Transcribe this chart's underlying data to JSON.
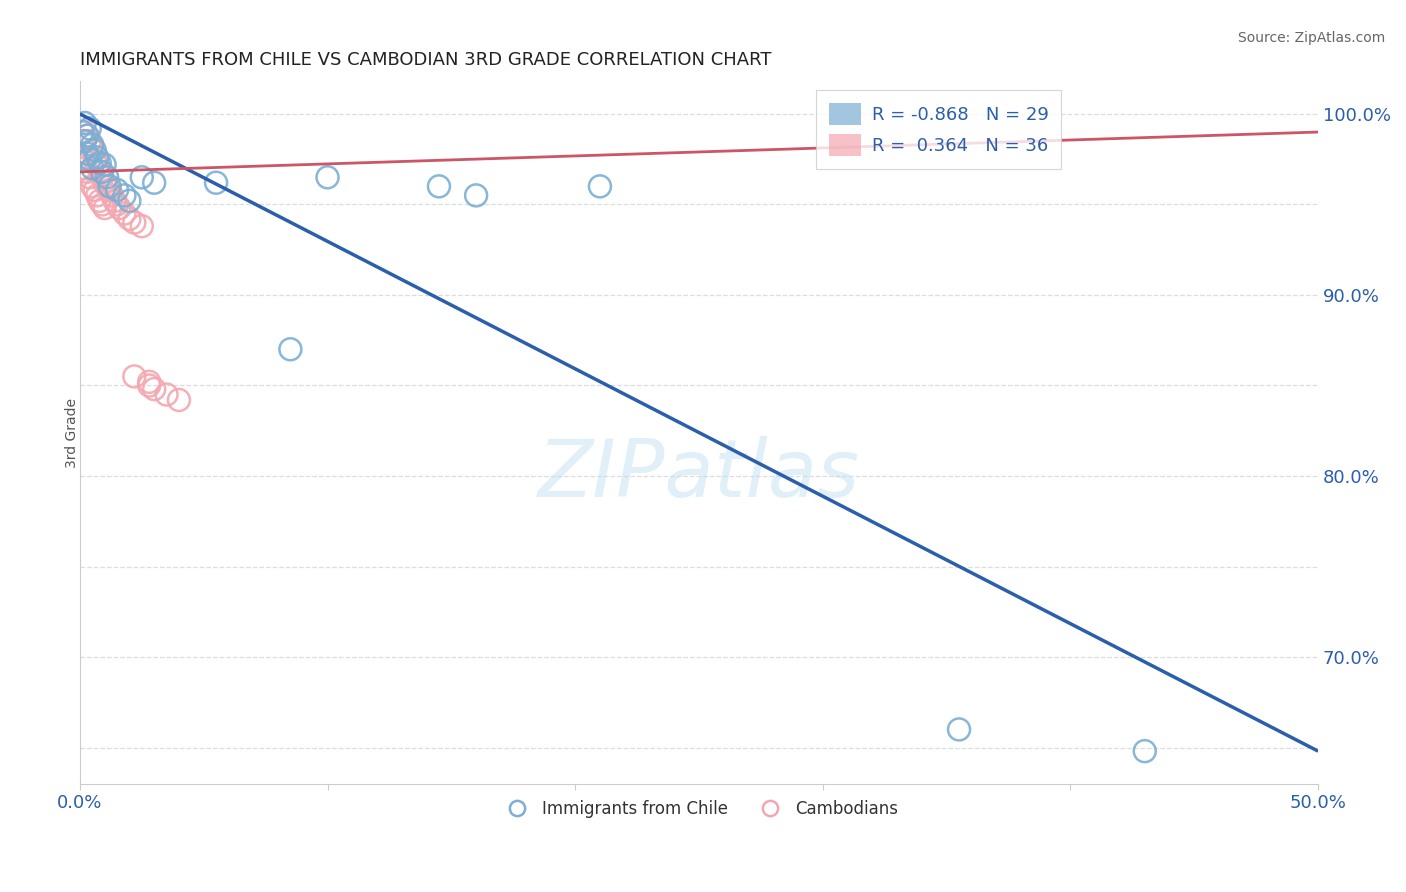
{
  "title": "IMMIGRANTS FROM CHILE VS CAMBODIAN 3RD GRADE CORRELATION CHART",
  "source_text": "Source: ZipAtlas.com",
  "ylabel": "3rd Grade",
  "xlim": [
    0.0,
    0.5
  ],
  "ylim": [
    0.63,
    1.018
  ],
  "blue_R": -0.868,
  "blue_N": 29,
  "pink_R": 0.364,
  "pink_N": 36,
  "blue_color": "#7BAFD4",
  "pink_color": "#F4A7B0",
  "blue_line_color": "#2B5EAB",
  "pink_line_color": "#CC5566",
  "legend_label_blue": "Immigrants from Chile",
  "legend_label_pink": "Cambodians",
  "watermark": "ZIPatlas",
  "blue_line_x": [
    0.0,
    0.5
  ],
  "blue_line_y": [
    1.0,
    0.648
  ],
  "pink_line_x": [
    0.0,
    0.5
  ],
  "pink_line_y": [
    0.968,
    0.99
  ],
  "blue_scatter_x": [
    0.001,
    0.002,
    0.002,
    0.003,
    0.003,
    0.004,
    0.004,
    0.005,
    0.005,
    0.006,
    0.007,
    0.008,
    0.009,
    0.01,
    0.011,
    0.012,
    0.015,
    0.018,
    0.02,
    0.025,
    0.03,
    0.055,
    0.085,
    0.1,
    0.145,
    0.16,
    0.21,
    0.355,
    0.43
  ],
  "blue_scatter_y": [
    0.99,
    0.985,
    0.995,
    0.988,
    0.978,
    0.992,
    0.975,
    0.983,
    0.97,
    0.98,
    0.976,
    0.973,
    0.968,
    0.972,
    0.965,
    0.96,
    0.958,
    0.955,
    0.952,
    0.965,
    0.962,
    0.962,
    0.87,
    0.965,
    0.96,
    0.955,
    0.96,
    0.66,
    0.648
  ],
  "pink_scatter_x": [
    0.001,
    0.001,
    0.002,
    0.002,
    0.003,
    0.003,
    0.004,
    0.004,
    0.005,
    0.005,
    0.006,
    0.006,
    0.007,
    0.007,
    0.008,
    0.008,
    0.009,
    0.009,
    0.01,
    0.01,
    0.011,
    0.012,
    0.013,
    0.014,
    0.015,
    0.016,
    0.018,
    0.02,
    0.022,
    0.025,
    0.028,
    0.03,
    0.035,
    0.04,
    0.022,
    0.028
  ],
  "pink_scatter_y": [
    0.985,
    0.975,
    0.99,
    0.97,
    0.988,
    0.968,
    0.985,
    0.965,
    0.98,
    0.96,
    0.975,
    0.958,
    0.972,
    0.955,
    0.968,
    0.952,
    0.965,
    0.95,
    0.962,
    0.948,
    0.96,
    0.958,
    0.955,
    0.952,
    0.95,
    0.948,
    0.945,
    0.942,
    0.94,
    0.938,
    0.85,
    0.848,
    0.845,
    0.842,
    0.855,
    0.852
  ],
  "grid_color": "#DDDDDD",
  "title_color": "#222222",
  "source_color": "#666666",
  "tick_color": "#2B5EAB",
  "label_color": "#555555"
}
